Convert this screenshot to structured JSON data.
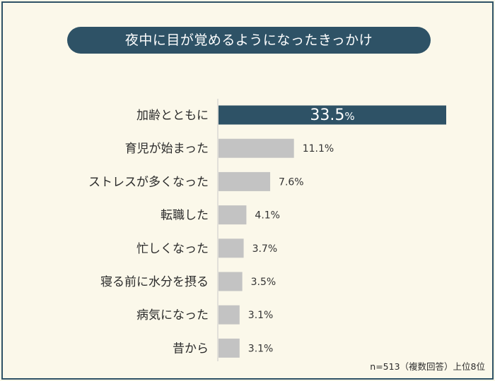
{
  "chart_data": {
    "type": "bar",
    "orientation": "horizontal",
    "title": "夜中に目が覚めるようになったきっかけ",
    "categories": [
      "加齢とともに",
      "育児が始まった",
      "ストレスが多くなった",
      "転職した",
      "忙しくなった",
      "寝る前に水分を摂る",
      "病気になった",
      "昔から"
    ],
    "values": [
      33.5,
      11.1,
      7.6,
      4.1,
      3.7,
      3.5,
      3.1,
      3.1
    ],
    "value_labels": [
      "33.5%",
      "11.1%",
      "7.6%",
      "4.1%",
      "3.7%",
      "3.5%",
      "3.1%",
      "3.1%"
    ],
    "highlight_index": 0,
    "xlim": [
      0,
      33.5
    ],
    "grid": false,
    "note": "n=513（複数回答）上位8位",
    "colors": {
      "highlight": "#2e5266",
      "bar": "#c3c3c3",
      "background": "#fbf8ea",
      "axis": "#c8c8c8"
    }
  }
}
